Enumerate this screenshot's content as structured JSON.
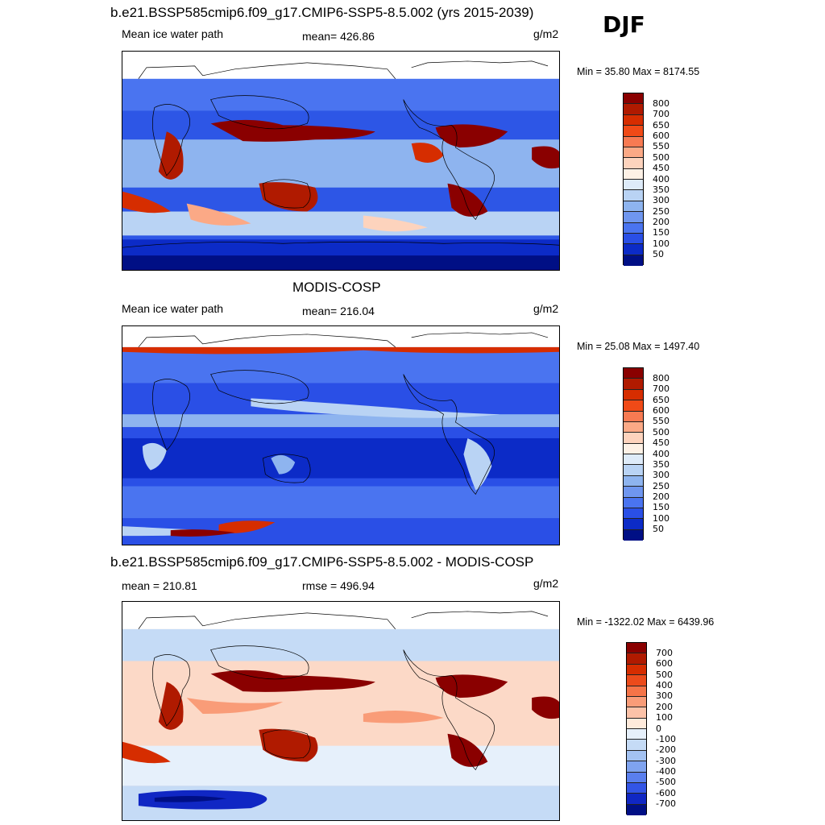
{
  "season": "DJF",
  "panels": [
    {
      "title": "b.e21.BSSP585cmip6.f09_g17.CMIP6-SSP5-8.5.002 (yrs 2015-2039)",
      "left_label": "Mean ice water path",
      "center_label": "mean= 426.86",
      "units": "g/m2",
      "minmax": "Min =  35.80 Max = 8174.55",
      "colorbar_ticks": [
        "800",
        "700",
        "650",
        "600",
        "550",
        "500",
        "450",
        "400",
        "350",
        "300",
        "250",
        "200",
        "150",
        "100",
        "50"
      ],
      "colorbar_colors": [
        "#8a0000",
        "#b01a00",
        "#d62d00",
        "#f04a17",
        "#f77a52",
        "#fba986",
        "#fdd3bd",
        "#fdf1e6",
        "#deebf9",
        "#b9d3f4",
        "#8eb4ef",
        "#6f96ef",
        "#4a74f0",
        "#2a4fe6",
        "#0c2bc7",
        "#000f85"
      ]
    },
    {
      "title": "MODIS-COSP",
      "left_label": "Mean ice water path",
      "center_label": "mean= 216.04",
      "units": "g/m2",
      "minmax": "Min =  25.08 Max = 1497.40",
      "colorbar_ticks": [
        "800",
        "700",
        "650",
        "600",
        "550",
        "500",
        "450",
        "400",
        "350",
        "300",
        "250",
        "200",
        "150",
        "100",
        "50"
      ],
      "colorbar_colors": [
        "#8a0000",
        "#b01a00",
        "#d62d00",
        "#f04a17",
        "#f77a52",
        "#fba986",
        "#fdd3bd",
        "#fdf1e6",
        "#deebf9",
        "#b9d3f4",
        "#8eb4ef",
        "#6f96ef",
        "#4a74f0",
        "#2a4fe6",
        "#0c2bc7",
        "#000f85"
      ]
    },
    {
      "title": "b.e21.BSSP585cmip6.f09_g17.CMIP6-SSP5-8.5.002 - MODIS-COSP",
      "left_label": "mean = 210.81",
      "center_label": "rmse = 496.94",
      "units": "g/m2",
      "minmax": "Min = -1322.02 Max = 6439.96",
      "colorbar_ticks": [
        "700",
        "600",
        "500",
        "400",
        "300",
        "200",
        "100",
        "0",
        "-100",
        "-200",
        "-300",
        "-400",
        "-500",
        "-600",
        "-700"
      ],
      "colorbar_colors": [
        "#8a0000",
        "#b01a00",
        "#d62d00",
        "#ec4b1b",
        "#f57448",
        "#f99c78",
        "#fcc2a8",
        "#feeadb",
        "#e6f0fb",
        "#c5dbf6",
        "#a3c2f2",
        "#7fa3ef",
        "#5a7fee",
        "#3355e6",
        "#1027c4",
        "#000f85"
      ]
    }
  ]
}
